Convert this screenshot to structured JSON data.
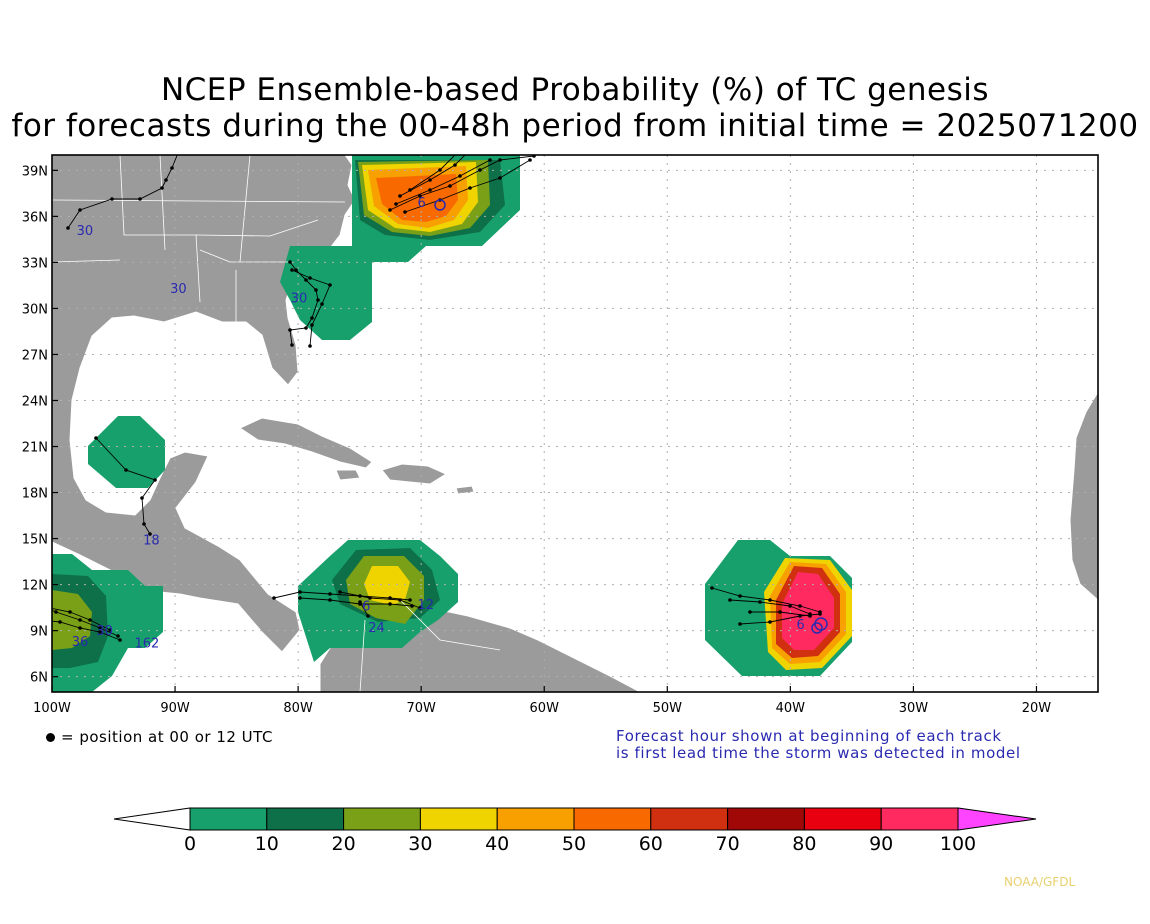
{
  "title_line1": "NCEP Ensemble-based Probability (%) of TC genesis",
  "title_line2": "for forecasts during the 00-48h period from initial time = 2025071200",
  "map": {
    "lat_ticks": [
      "39N",
      "36N",
      "33N",
      "30N",
      "27N",
      "24N",
      "21N",
      "18N",
      "15N",
      "12N",
      "9N",
      "6N"
    ],
    "lon_ticks": [
      "100W",
      "90W",
      "80W",
      "70W",
      "60W",
      "50W",
      "40W",
      "30W",
      "20W"
    ],
    "lat_range": [
      5,
      40
    ],
    "lon_range": [
      -100,
      -15
    ]
  },
  "track_labels": [
    {
      "text": "30",
      "lon": -98.0,
      "lat": 34.8
    },
    {
      "text": "30",
      "lon": -90.4,
      "lat": 31.0
    },
    {
      "text": "30",
      "lon": -80.6,
      "lat": 30.4
    },
    {
      "text": "18",
      "lon": -92.6,
      "lat": 14.6
    },
    {
      "text": "24",
      "lon": -74.3,
      "lat": 8.9
    },
    {
      "text": "6",
      "lon": -74.8,
      "lat": 10.3
    },
    {
      "text": "12",
      "lon": -70.3,
      "lat": 10.4
    },
    {
      "text": "30",
      "lon": -96.4,
      "lat": 8.7
    },
    {
      "text": "36",
      "lon": -98.4,
      "lat": 8.0
    },
    {
      "text": "162",
      "lon": -93.3,
      "lat": 7.9
    },
    {
      "text": "6",
      "lon": -39.5,
      "lat": 9.1
    },
    {
      "text": "6",
      "lon": -70.3,
      "lat": 36.6
    }
  ],
  "point_legend": "= position at 00 or 12 UTC",
  "note_line1": "Forecast hour shown at beginning of each track",
  "note_line2": "is first lead time the storm was detected in model",
  "colorbar": {
    "ticks": [
      "0",
      "10",
      "20",
      "30",
      "40",
      "50",
      "60",
      "70",
      "80",
      "90",
      "100"
    ],
    "colors": [
      "#17a06b",
      "#0e7048",
      "#7aa018",
      "#f0d400",
      "#f8a000",
      "#f86a00",
      "#d03010",
      "#a00808",
      "#e80010",
      "#ff2a60"
    ],
    "under_color": "#ffffff",
    "over_color": "#ff44ff"
  },
  "credit": "NOAA/GFDL"
}
